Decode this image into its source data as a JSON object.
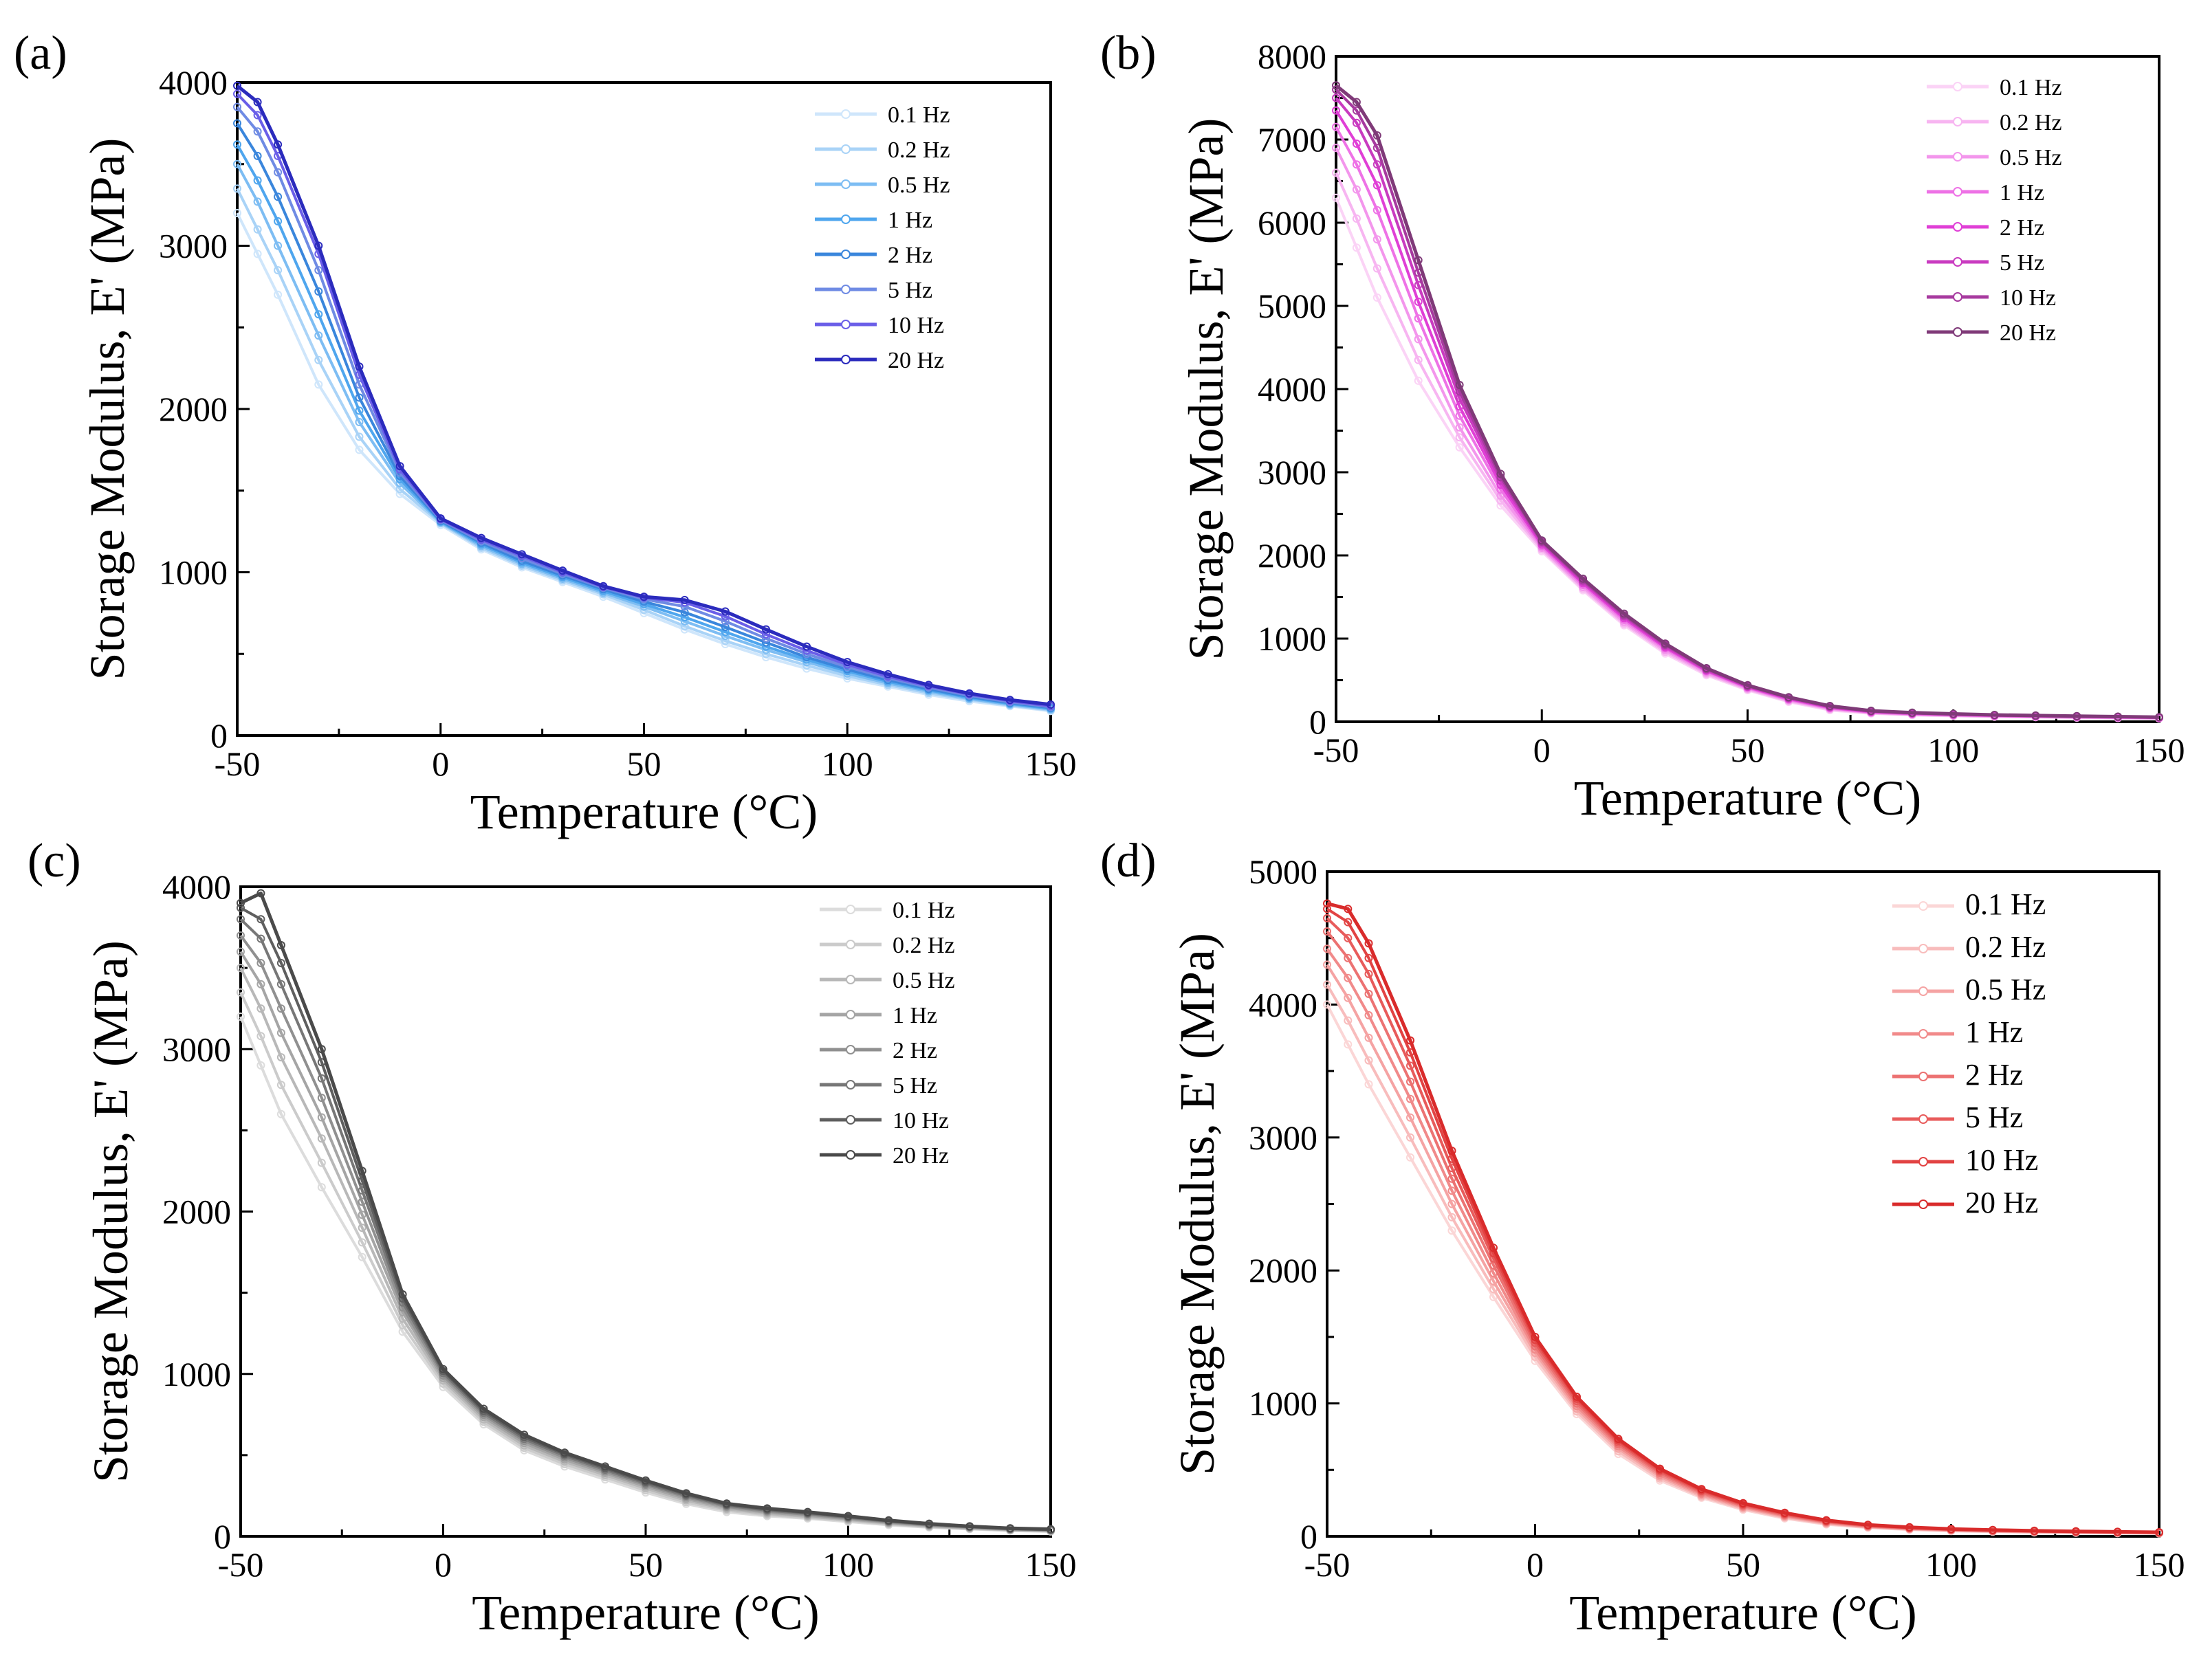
{
  "chart_data": [
    {
      "type": "line",
      "panel_label": "(a)",
      "xlabel": "Temperature (°C)",
      "ylabel": "Storage Modulus, E' (MPa)",
      "xlim": [
        -50,
        150
      ],
      "ylim": [
        0,
        4000
      ],
      "xticks": [
        -50,
        0,
        50,
        100,
        150
      ],
      "yticks": [
        0,
        1000,
        2000,
        3000,
        4000
      ],
      "legend_position": "top-right",
      "x": [
        -50,
        -45,
        -40,
        -30,
        -20,
        -10,
        0,
        10,
        20,
        30,
        40,
        50,
        60,
        70,
        80,
        90,
        100,
        110,
        120,
        130,
        140,
        150
      ],
      "series": [
        {
          "name": "0.1 Hz",
          "color": "#cfe6fb",
          "values": [
            3200,
            2950,
            2700,
            2150,
            1750,
            1480,
            1290,
            1140,
            1030,
            940,
            850,
            750,
            650,
            560,
            480,
            410,
            350,
            300,
            250,
            210,
            180,
            150
          ]
        },
        {
          "name": "0.2 Hz",
          "color": "#a9d3f7",
          "values": [
            3350,
            3100,
            2850,
            2300,
            1830,
            1510,
            1300,
            1150,
            1040,
            950,
            865,
            770,
            670,
            580,
            500,
            430,
            365,
            310,
            260,
            220,
            185,
            155
          ]
        },
        {
          "name": "0.5 Hz",
          "color": "#7dbdf3",
          "values": [
            3500,
            3270,
            3000,
            2450,
            1920,
            1545,
            1305,
            1160,
            1050,
            960,
            875,
            790,
            700,
            610,
            525,
            450,
            380,
            320,
            270,
            225,
            190,
            160
          ]
        },
        {
          "name": "1 Hz",
          "color": "#4fa6ee",
          "values": [
            3620,
            3400,
            3150,
            2580,
            1990,
            1570,
            1310,
            1170,
            1060,
            970,
            885,
            805,
            725,
            635,
            545,
            465,
            395,
            330,
            278,
            232,
            195,
            165
          ]
        },
        {
          "name": "2 Hz",
          "color": "#3a86dc",
          "values": [
            3750,
            3550,
            3300,
            2720,
            2070,
            1590,
            1315,
            1180,
            1070,
            980,
            895,
            820,
            755,
            665,
            570,
            480,
            405,
            340,
            285,
            238,
            200,
            170
          ]
        },
        {
          "name": "5 Hz",
          "color": "#6f8be4",
          "values": [
            3850,
            3700,
            3450,
            2850,
            2150,
            1610,
            1320,
            1190,
            1085,
            990,
            905,
            835,
            790,
            700,
            595,
            500,
            420,
            352,
            295,
            245,
            205,
            175
          ]
        },
        {
          "name": "10 Hz",
          "color": "#6a5ee8",
          "values": [
            3930,
            3800,
            3550,
            2950,
            2210,
            1630,
            1325,
            1200,
            1100,
            1000,
            910,
            845,
            815,
            730,
            620,
            520,
            435,
            362,
            303,
            252,
            212,
            180
          ]
        },
        {
          "name": "20 Hz",
          "color": "#2b2bbd",
          "values": [
            3980,
            3880,
            3620,
            3000,
            2260,
            1650,
            1330,
            1210,
            1110,
            1010,
            915,
            850,
            830,
            760,
            650,
            545,
            450,
            375,
            310,
            258,
            218,
            190
          ]
        }
      ]
    },
    {
      "type": "line",
      "panel_label": "(b)",
      "xlabel": "Temperature (°C)",
      "ylabel": "Storage Modulus, E' (MPa)",
      "xlim": [
        -50,
        150
      ],
      "ylim": [
        0,
        8000
      ],
      "xticks": [
        -50,
        0,
        50,
        100,
        150
      ],
      "yticks": [
        0,
        1000,
        2000,
        3000,
        4000,
        5000,
        6000,
        7000,
        8000
      ],
      "legend_position": "top-right",
      "x": [
        -50,
        -45,
        -40,
        -30,
        -20,
        -10,
        0,
        10,
        20,
        30,
        40,
        50,
        60,
        70,
        80,
        90,
        100,
        110,
        120,
        130,
        140,
        150
      ],
      "series": [
        {
          "name": "0.1 Hz",
          "color": "#fbd3f6",
          "values": [
            6300,
            5700,
            5100,
            4100,
            3300,
            2600,
            2050,
            1580,
            1160,
            820,
            560,
            380,
            240,
            140,
            100,
            80,
            70,
            60,
            55,
            50,
            45,
            40
          ]
        },
        {
          "name": "0.2 Hz",
          "color": "#f7b5f1",
          "values": [
            6600,
            6050,
            5450,
            4350,
            3420,
            2660,
            2070,
            1600,
            1180,
            840,
            575,
            390,
            250,
            150,
            105,
            85,
            74,
            64,
            58,
            52,
            48,
            44
          ]
        },
        {
          "name": "0.5 Hz",
          "color": "#f396ec",
          "values": [
            6900,
            6400,
            5800,
            4600,
            3540,
            2720,
            2090,
            1620,
            1200,
            860,
            590,
            400,
            260,
            158,
            110,
            90,
            78,
            68,
            62,
            55,
            50,
            46
          ]
        },
        {
          "name": "1 Hz",
          "color": "#ee72e6",
          "values": [
            7150,
            6700,
            6150,
            4850,
            3680,
            2790,
            2110,
            1645,
            1225,
            880,
            605,
            410,
            268,
            165,
            115,
            95,
            82,
            72,
            65,
            58,
            53,
            48
          ]
        },
        {
          "name": "2 Hz",
          "color": "#e03fd6",
          "values": [
            7350,
            6950,
            6450,
            5050,
            3790,
            2850,
            2130,
            1665,
            1245,
            895,
            615,
            418,
            276,
            172,
            120,
            99,
            86,
            75,
            68,
            61,
            55,
            50
          ]
        },
        {
          "name": "5 Hz",
          "color": "#c93bc0",
          "values": [
            7500,
            7200,
            6700,
            5250,
            3890,
            2900,
            2150,
            1685,
            1265,
            910,
            625,
            425,
            284,
            178,
            124,
            102,
            89,
            78,
            70,
            63,
            57,
            52
          ]
        },
        {
          "name": "10 Hz",
          "color": "#a73a9f",
          "values": [
            7600,
            7350,
            6900,
            5400,
            3970,
            2940,
            2165,
            1700,
            1280,
            925,
            635,
            432,
            290,
            184,
            128,
            106,
            92,
            80,
            72,
            65,
            59,
            54
          ]
        },
        {
          "name": "20 Hz",
          "color": "#7f3a78",
          "values": [
            7650,
            7450,
            7050,
            5550,
            4050,
            2980,
            2180,
            1720,
            1300,
            940,
            645,
            440,
            296,
            190,
            132,
            110,
            95,
            83,
            75,
            68,
            62,
            56
          ]
        }
      ]
    },
    {
      "type": "line",
      "panel_label": "(c)",
      "xlabel": "Temperature (°C)",
      "ylabel": "Storage Modulus, E' (MPa)",
      "xlim": [
        -50,
        150
      ],
      "ylim": [
        0,
        4000
      ],
      "xticks": [
        -50,
        0,
        50,
        100,
        150
      ],
      "yticks": [
        0,
        1000,
        2000,
        3000,
        4000
      ],
      "legend_position": "top-right",
      "x": [
        -50,
        -45,
        -40,
        -30,
        -20,
        -10,
        0,
        10,
        20,
        30,
        40,
        50,
        60,
        70,
        80,
        90,
        100,
        110,
        120,
        130,
        140,
        150
      ],
      "series": [
        {
          "name": "0.1 Hz",
          "color": "#dcdcdc",
          "values": [
            3200,
            2900,
            2600,
            2150,
            1720,
            1260,
            920,
            690,
            530,
            430,
            350,
            270,
            200,
            150,
            125,
            110,
            90,
            70,
            55,
            45,
            35,
            30
          ]
        },
        {
          "name": "0.2 Hz",
          "color": "#cbcbcb",
          "values": [
            3350,
            3080,
            2780,
            2300,
            1810,
            1300,
            940,
            705,
            545,
            445,
            365,
            283,
            210,
            160,
            132,
            116,
            96,
            75,
            58,
            47,
            37,
            32
          ]
        },
        {
          "name": "0.5 Hz",
          "color": "#b8b8b8",
          "values": [
            3500,
            3250,
            2950,
            2450,
            1900,
            1340,
            960,
            720,
            560,
            460,
            378,
            296,
            222,
            168,
            140,
            122,
            102,
            80,
            62,
            50,
            40,
            34
          ]
        },
        {
          "name": "1 Hz",
          "color": "#a5a5a5",
          "values": [
            3600,
            3400,
            3100,
            2580,
            1980,
            1380,
            975,
            735,
            575,
            473,
            390,
            307,
            232,
            176,
            147,
            128,
            107,
            84,
            66,
            53,
            42,
            36
          ]
        },
        {
          "name": "2 Hz",
          "color": "#909090",
          "values": [
            3700,
            3530,
            3250,
            2700,
            2060,
            1410,
            990,
            748,
            588,
            485,
            400,
            317,
            242,
            183,
            154,
            134,
            112,
            88,
            69,
            56,
            44,
            38
          ]
        },
        {
          "name": "5 Hz",
          "color": "#777777",
          "values": [
            3800,
            3680,
            3400,
            2820,
            2130,
            1440,
            1005,
            760,
            600,
            496,
            410,
            326,
            250,
            190,
            160,
            140,
            117,
            92,
            72,
            58,
            46,
            40
          ]
        },
        {
          "name": "10 Hz",
          "color": "#5f5f5f",
          "values": [
            3870,
            3800,
            3530,
            2920,
            2190,
            1465,
            1018,
            772,
            612,
            506,
            420,
            335,
            258,
            196,
            166,
            145,
            121,
            95,
            75,
            60,
            48,
            42
          ]
        },
        {
          "name": "20 Hz",
          "color": "#4a4a4a",
          "values": [
            3900,
            3960,
            3640,
            3000,
            2250,
            1490,
            1030,
            785,
            625,
            515,
            430,
            344,
            265,
            202,
            172,
            150,
            125,
            98,
            78,
            62,
            50,
            44
          ]
        }
      ]
    },
    {
      "type": "line",
      "panel_label": "(d)",
      "xlabel": "Temperature (°C)",
      "ylabel": "Storage Modulus, E' (MPa)",
      "xlim": [
        -50,
        150
      ],
      "ylim": [
        0,
        5000
      ],
      "xticks": [
        -50,
        0,
        50,
        100,
        150
      ],
      "yticks": [
        0,
        1000,
        2000,
        3000,
        4000,
        5000
      ],
      "legend_position": "top-right",
      "x": [
        -50,
        -45,
        -40,
        -30,
        -20,
        -10,
        0,
        10,
        20,
        30,
        40,
        50,
        60,
        70,
        80,
        90,
        100,
        110,
        120,
        130,
        140,
        150
      ],
      "series": [
        {
          "name": "0.1 Hz",
          "color": "#fbd6d6",
          "values": [
            4000,
            3700,
            3400,
            2850,
            2300,
            1800,
            1320,
            920,
            620,
            420,
            290,
            200,
            135,
            90,
            65,
            50,
            40,
            35,
            30,
            27,
            25,
            22
          ]
        },
        {
          "name": "0.2 Hz",
          "color": "#f8bcbc",
          "values": [
            4150,
            3880,
            3580,
            3000,
            2400,
            1860,
            1350,
            940,
            640,
            435,
            300,
            208,
            142,
            95,
            68,
            53,
            43,
            37,
            32,
            29,
            26,
            24
          ]
        },
        {
          "name": "0.5 Hz",
          "color": "#f5a3a3",
          "values": [
            4300,
            4050,
            3750,
            3150,
            2500,
            1920,
            1380,
            960,
            660,
            450,
            310,
            216,
            149,
            100,
            72,
            56,
            46,
            39,
            34,
            31,
            28,
            25
          ]
        },
        {
          "name": "1 Hz",
          "color": "#f18a8a",
          "values": [
            4420,
            4200,
            3920,
            3290,
            2600,
            1980,
            1405,
            980,
            676,
            463,
            320,
            223,
            155,
            105,
            75,
            59,
            48,
            41,
            36,
            32,
            29,
            26
          ]
        },
        {
          "name": "2 Hz",
          "color": "#ec7272",
          "values": [
            4550,
            4350,
            4080,
            3420,
            2690,
            2040,
            1430,
            1000,
            692,
            476,
            330,
            230,
            161,
            109,
            78,
            61,
            50,
            43,
            38,
            34,
            31,
            28
          ]
        },
        {
          "name": "5 Hz",
          "color": "#e85b5b",
          "values": [
            4650,
            4500,
            4230,
            3540,
            2770,
            2090,
            1455,
            1018,
            706,
            488,
            339,
            237,
            167,
            113,
            81,
            64,
            52,
            45,
            39,
            35,
            32,
            29
          ]
        },
        {
          "name": "10 Hz",
          "color": "#e24343",
          "values": [
            4720,
            4620,
            4350,
            3640,
            2840,
            2130,
            1478,
            1035,
            720,
            499,
            347,
            243,
            172,
            117,
            84,
            66,
            54,
            47,
            41,
            37,
            33,
            30
          ]
        },
        {
          "name": "20 Hz",
          "color": "#d92b2b",
          "values": [
            4760,
            4720,
            4460,
            3730,
            2900,
            2170,
            1500,
            1050,
            733,
            509,
            355,
            249,
            177,
            121,
            87,
            68,
            56,
            48,
            42,
            38,
            34,
            31
          ]
        }
      ]
    }
  ]
}
